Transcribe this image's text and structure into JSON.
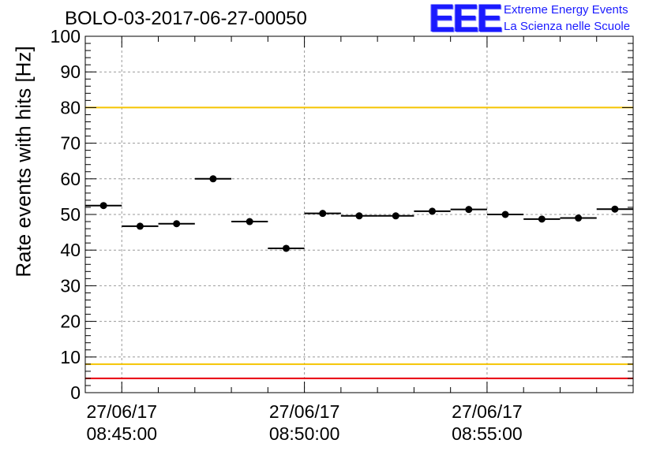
{
  "title": "BOLO-03-2017-06-27-00050",
  "logo": {
    "mark": "EEE",
    "line1": "Extreme Energy Events",
    "line2": "La Scienza nelle Scuole"
  },
  "colors": {
    "logo": "#1a1aff",
    "upper_limit_line": "#f5c400",
    "lower_limit_line": "#f5c400",
    "min_line": "#e8000b",
    "grid": "#999999",
    "marker": "#000000"
  },
  "chart_data": {
    "type": "scatter",
    "title": "BOLO-03-2017-06-27-00050",
    "ylabel": "Rate events with hits [Hz]",
    "xlabel": "",
    "ylim": [
      0,
      100
    ],
    "yticks": [
      0,
      10,
      20,
      30,
      40,
      50,
      60,
      70,
      80,
      90,
      100
    ],
    "xlim": [
      "08:44:00",
      "08:59:00"
    ],
    "xticks": [
      {
        "time": "08:45:00",
        "date": "27/06/17",
        "time_label": "08:45:00"
      },
      {
        "time": "08:50:00",
        "date": "27/06/17",
        "time_label": "08:50:00"
      },
      {
        "time": "08:55:00",
        "date": "27/06/17",
        "time_label": "08:55:00"
      }
    ],
    "grid": true,
    "bin_width_minutes": 1,
    "series": [
      {
        "points": [
          {
            "x": "08:44:30",
            "y": 52.5
          },
          {
            "x": "08:45:30",
            "y": 46.7
          },
          {
            "x": "08:46:30",
            "y": 47.4
          },
          {
            "x": "08:47:30",
            "y": 60.0
          },
          {
            "x": "08:48:30",
            "y": 48.0
          },
          {
            "x": "08:49:30",
            "y": 40.5
          },
          {
            "x": "08:50:30",
            "y": 50.3
          },
          {
            "x": "08:51:30",
            "y": 49.6
          },
          {
            "x": "08:52:30",
            "y": 49.6
          },
          {
            "x": "08:53:30",
            "y": 50.9
          },
          {
            "x": "08:54:30",
            "y": 51.4
          },
          {
            "x": "08:55:30",
            "y": 50.0
          },
          {
            "x": "08:56:30",
            "y": 48.7
          },
          {
            "x": "08:57:30",
            "y": 49.0
          },
          {
            "x": "08:58:30",
            "y": 51.5
          }
        ]
      }
    ],
    "reference_lines": [
      {
        "y": 80,
        "color": "#f5c400"
      },
      {
        "y": 8,
        "color": "#f5c400"
      },
      {
        "y": 4,
        "color": "#e8000b"
      }
    ]
  }
}
